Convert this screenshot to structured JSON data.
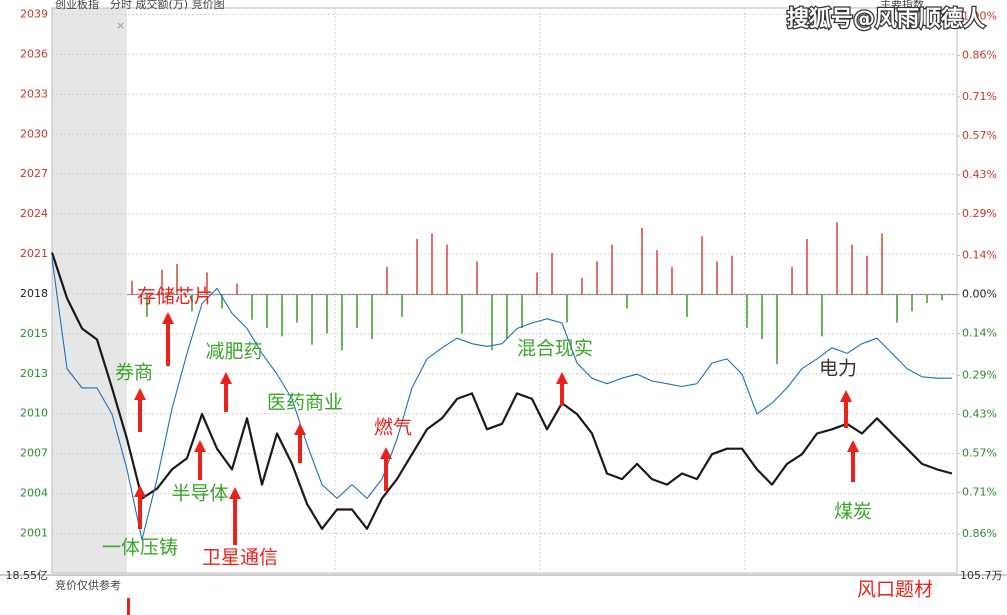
{
  "chart_data": {
    "type": "line",
    "title": "创业板指",
    "subtitle": "分时 成交额(万) 竞价图",
    "index_button": "主要指数",
    "watermark": "搜狐号@风雨顺德人",
    "left_bottom_label": "18.55亿",
    "right_bottom_label": "105.7万",
    "auction_note": "竞价仅供参考",
    "ylim": [
      1998.1,
      2039.0
    ],
    "yticks": [
      {
        "value": 2000.96,
        "label": "2001"
      },
      {
        "value": 2003.85,
        "label": "2004"
      },
      {
        "value": 2006.74,
        "label": "2007"
      },
      {
        "value": 2009.63,
        "label": "2010"
      },
      {
        "value": 2012.52,
        "label": "2013"
      },
      {
        "value": 2015.41,
        "label": "2015"
      },
      {
        "value": 2018.3,
        "label": "2018"
      },
      {
        "value": 2021.19,
        "label": "2021"
      },
      {
        "value": 2024.08,
        "label": "2024"
      },
      {
        "value": 2026.97,
        "label": "2027"
      },
      {
        "value": 2029.86,
        "label": "2030"
      },
      {
        "value": 2032.75,
        "label": "2033"
      },
      {
        "value": 2035.64,
        "label": "2036"
      },
      {
        "value": 2038.53,
        "label": "2039"
      }
    ],
    "y2lim": [
      -1.0,
      1.03
    ],
    "y2ticks": [
      {
        "value": -0.86,
        "label": "0.86%"
      },
      {
        "value": -0.71,
        "label": "0.71%"
      },
      {
        "value": -0.57,
        "label": "0.57%"
      },
      {
        "value": -0.43,
        "label": "0.43%"
      },
      {
        "value": -0.29,
        "label": "0.29%"
      },
      {
        "value": -0.14,
        "label": "0.14%"
      },
      {
        "value": 0,
        "label": "0.00%"
      },
      {
        "value": 0.14,
        "label": "0.14%"
      },
      {
        "value": 0.29,
        "label": "0.29%"
      },
      {
        "value": 0.43,
        "label": "0.43%"
      },
      {
        "value": 0.57,
        "label": "0.57%"
      },
      {
        "value": 0.71,
        "label": "0.71%"
      },
      {
        "value": 0.86,
        "label": "0.86%"
      },
      {
        "value": 1.0,
        "label": "1.00%"
      }
    ],
    "grid": true,
    "series": [
      {
        "color": "#1a1a1a",
        "values": [
          2021.3,
          2018.0,
          2015.8,
          2015.0,
          2011.5,
          2007.8,
          2003.5,
          2004.2,
          2005.6,
          2006.4,
          2009.6,
          2007.1,
          2005.6,
          2009.3,
          2004.5,
          2008.2,
          2006.0,
          2003.1,
          2001.3,
          2002.7,
          2002.7,
          2001.3,
          2003.5,
          2004.9,
          2006.7,
          2008.5,
          2009.3,
          2010.7,
          2011.1,
          2008.5,
          2008.9,
          2011.1,
          2010.7,
          2008.5,
          2010.4,
          2009.6,
          2008.2,
          2005.3,
          2004.9,
          2006.0,
          2004.9,
          2004.5,
          2005.3,
          2004.9,
          2006.7,
          2007.1,
          2007.1,
          2005.6,
          2004.5,
          2006.0,
          2006.7,
          2008.2,
          2008.5,
          2008.9,
          2008.2,
          2009.3,
          2008.2,
          2007.1,
          2006.0,
          2005.6,
          2005.3
        ]
      },
      {
        "color": "#1f6fb8",
        "values": [
          2020.9,
          2012.9,
          2011.5,
          2011.5,
          2009.6,
          2005.6,
          2000.5,
          2004.9,
          2010.0,
          2014.0,
          2017.6,
          2018.7,
          2016.9,
          2015.8,
          2014.0,
          2012.5,
          2010.7,
          2007.4,
          2004.5,
          2003.5,
          2004.5,
          2003.5,
          2004.9,
          2007.8,
          2011.5,
          2013.6,
          2014.4,
          2015.1,
          2014.7,
          2014.5,
          2014.7,
          2015.8,
          2016.2,
          2016.5,
          2016.2,
          2013.3,
          2012.2,
          2011.8,
          2012.2,
          2012.5,
          2012.0,
          2011.8,
          2011.6,
          2011.8,
          2013.3,
          2013.6,
          2012.5,
          2009.6,
          2010.4,
          2011.5,
          2012.9,
          2013.6,
          2014.4,
          2014.0,
          2014.7,
          2015.1,
          2014.0,
          2012.9,
          2012.3,
          2012.2,
          2012.2
        ]
      }
    ],
    "bars": {
      "axis": "y2",
      "up_color": "#d9413a",
      "down_color": "#3a9a2a",
      "values": [
        0.05,
        -0.08,
        0.09,
        0.11,
        -0.06,
        0.08,
        -0.05,
        0.04,
        -0.09,
        -0.12,
        -0.15,
        -0.1,
        -0.18,
        -0.14,
        -0.2,
        -0.12,
        -0.16,
        0.1,
        -0.08,
        0.2,
        0.22,
        0.18,
        -0.14,
        0.12,
        -0.2,
        -0.16,
        -0.12,
        0.08,
        0.15,
        -0.1,
        0.06,
        0.12,
        0.18,
        -0.05,
        0.24,
        0.16,
        0.1,
        -0.08,
        0.21,
        0.12,
        0.14,
        -0.12,
        -0.16,
        -0.25,
        0.1,
        0.2,
        -0.15,
        0.26,
        0.18,
        0.14,
        0.22,
        -0.1,
        -0.06,
        -0.03,
        -0.02
      ]
    },
    "annotations": [
      {
        "text": "存储芯片",
        "color": "#e8231c"
      },
      {
        "text": "券商",
        "color": "#3aa52a"
      },
      {
        "text": "减肥药",
        "color": "#3aa52a"
      },
      {
        "text": "医药商业",
        "color": "#3aa52a"
      },
      {
        "text": "燃气",
        "color": "#e8231c"
      },
      {
        "text": "混合现实",
        "color": "#3aa52a"
      },
      {
        "text": "电力",
        "color": "#333333"
      },
      {
        "text": "半导体",
        "color": "#3aa52a"
      },
      {
        "text": "一体压铸",
        "color": "#3aa52a"
      },
      {
        "text": "卫星通信",
        "color": "#e8231c"
      },
      {
        "text": "煤炭",
        "color": "#3aa52a"
      },
      {
        "text": "风口题材",
        "color": "#e8231c"
      }
    ]
  }
}
